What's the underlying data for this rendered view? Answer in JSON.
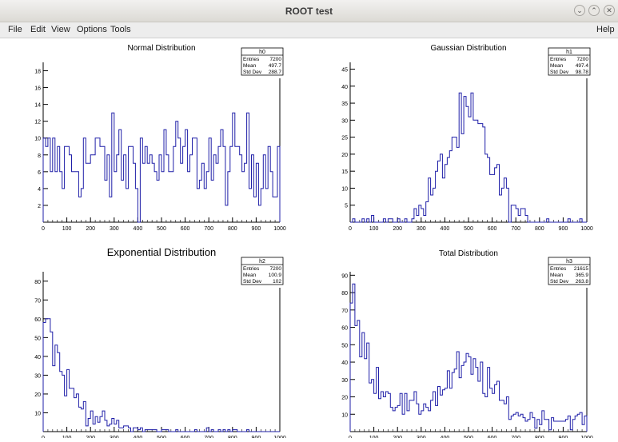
{
  "window": {
    "title": "ROOT test",
    "controls": [
      "minimize-icon",
      "maximize-icon",
      "close-icon"
    ]
  },
  "menu": {
    "file": "File",
    "edit": "Edit",
    "view": "View",
    "options": "Options",
    "tools": "Tools",
    "help": "Help"
  },
  "colors": {
    "histogram": "#1f1fa8",
    "axis": "#000000",
    "background": "#ffffff"
  },
  "chart_data": [
    {
      "id": "h0",
      "type": "histogram",
      "title": "Normal Distribution",
      "stats": [
        [
          "h0",
          ""
        ],
        [
          "Entries",
          "7200"
        ],
        [
          "Mean",
          "497.7"
        ],
        [
          "Std Dev",
          "288.7"
        ]
      ],
      "xlim": [
        0,
        1000
      ],
      "ylim": [
        0,
        19
      ],
      "xticks": [
        0,
        100,
        200,
        300,
        400,
        500,
        600,
        700,
        800,
        900,
        1000
      ],
      "yticks": [
        2,
        4,
        6,
        8,
        10,
        12,
        14,
        16,
        18
      ],
      "shape": "uniform",
      "shape_params": {
        "level": 7.2
      },
      "grid": false
    },
    {
      "id": "h1",
      "type": "histogram",
      "title": "Gaussian Distribution",
      "stats": [
        [
          "h1",
          ""
        ],
        [
          "Entries",
          "7200"
        ],
        [
          "Mean",
          "497.4"
        ],
        [
          "Std Dev",
          "98.78"
        ]
      ],
      "xlim": [
        0,
        1000
      ],
      "ylim": [
        0,
        47
      ],
      "xticks": [
        0,
        100,
        200,
        300,
        400,
        500,
        600,
        700,
        800,
        900,
        1000
      ],
      "yticks": [
        5,
        10,
        15,
        20,
        25,
        30,
        35,
        40,
        45
      ],
      "shape": "gaussian",
      "shape_params": {
        "amp": 29,
        "mean": 497,
        "sigma": 99
      },
      "grid": false
    },
    {
      "id": "h2",
      "type": "histogram",
      "title": "Exponential Distribution",
      "stats": [
        [
          "h2",
          ""
        ],
        [
          "Entries",
          "7200"
        ],
        [
          "Mean",
          "100.9"
        ],
        [
          "Std Dev",
          "102"
        ]
      ],
      "xlim": [
        0,
        1000
      ],
      "ylim": [
        0,
        85
      ],
      "xticks": [
        0,
        100,
        200,
        300,
        400,
        500,
        600,
        700,
        800,
        900,
        1000
      ],
      "yticks": [
        10,
        20,
        30,
        40,
        50,
        60,
        70,
        80
      ],
      "shape": "exponential",
      "shape_params": {
        "amp": 72,
        "tau": 100
      },
      "grid": false
    },
    {
      "id": "h3",
      "type": "histogram",
      "title": "Total Distribution",
      "stats": [
        [
          "h3",
          ""
        ],
        [
          "Entries",
          "21615"
        ],
        [
          "Mean",
          "365.9"
        ],
        [
          "Std Dev",
          "263.8"
        ]
      ],
      "xlim": [
        0,
        1000
      ],
      "ylim": [
        0,
        92
      ],
      "xticks": [
        0,
        100,
        200,
        300,
        400,
        500,
        600,
        700,
        800,
        900,
        1000
      ],
      "yticks": [
        10,
        20,
        30,
        40,
        50,
        60,
        70,
        80,
        90
      ],
      "shape": "total",
      "shape_params": {
        "uniform": 7.2,
        "g_amp": 29,
        "g_mean": 497,
        "g_sigma": 99,
        "e_amp": 72,
        "e_tau": 100
      },
      "grid": false
    }
  ]
}
